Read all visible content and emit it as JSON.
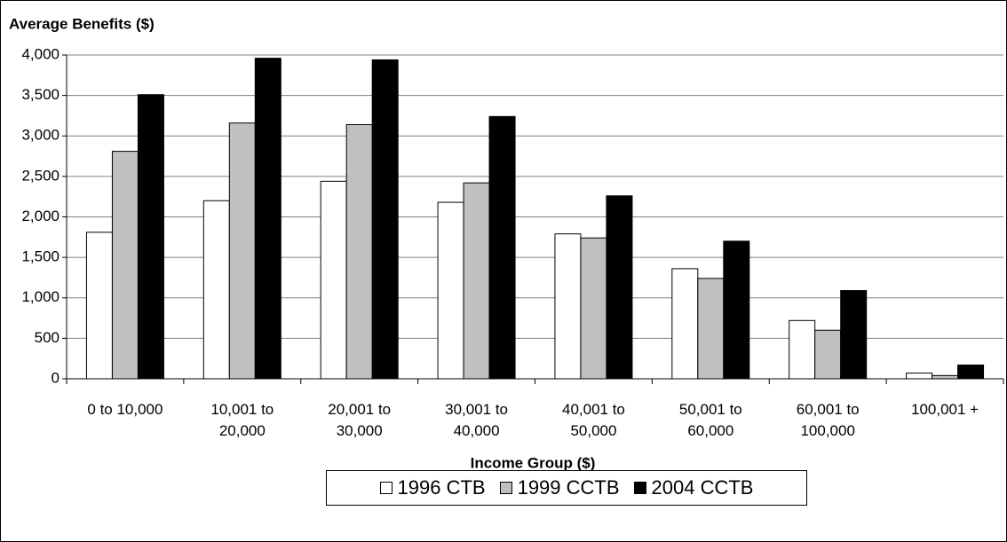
{
  "chart_data": {
    "type": "bar",
    "y_label": "Average Benefits ($)",
    "x_label": "Income Group ($)",
    "categories": [
      "0 to 10,000",
      "10,001 to 20,000",
      "20,001 to 30,000",
      "30,001 to 40,000",
      "40,001 to 50,000",
      "50,001 to 60,000",
      "60,001 to 100,000",
      "100,001 +"
    ],
    "series": [
      {
        "name": "1996 CTB",
        "color": "#ffffff",
        "values": [
          1810,
          2200,
          2440,
          2180,
          1790,
          1360,
          720,
          70
        ]
      },
      {
        "name": "1999 CCTB",
        "color": "#c0c0c0",
        "values": [
          2810,
          3160,
          3140,
          2420,
          1740,
          1240,
          600,
          40
        ]
      },
      {
        "name": "2004 CCTB",
        "color": "#000000",
        "values": [
          3510,
          3960,
          3940,
          3240,
          2260,
          1700,
          1090,
          170
        ]
      }
    ],
    "ylim": [
      0,
      4000
    ],
    "yticks": [
      0,
      500,
      {
        "value": 1000,
        "label": "1,000"
      },
      {
        "value": 1500,
        "label": "1,500"
      },
      {
        "value": 2000,
        "label": "2,000"
      },
      {
        "value": 2500,
        "label": "2,500"
      },
      {
        "value": 3000,
        "label": "3,000"
      },
      {
        "value": 3500,
        "label": "3,500"
      },
      {
        "value": 4000,
        "label": "4,000"
      }
    ],
    "grid": true,
    "legend": "bottom"
  }
}
